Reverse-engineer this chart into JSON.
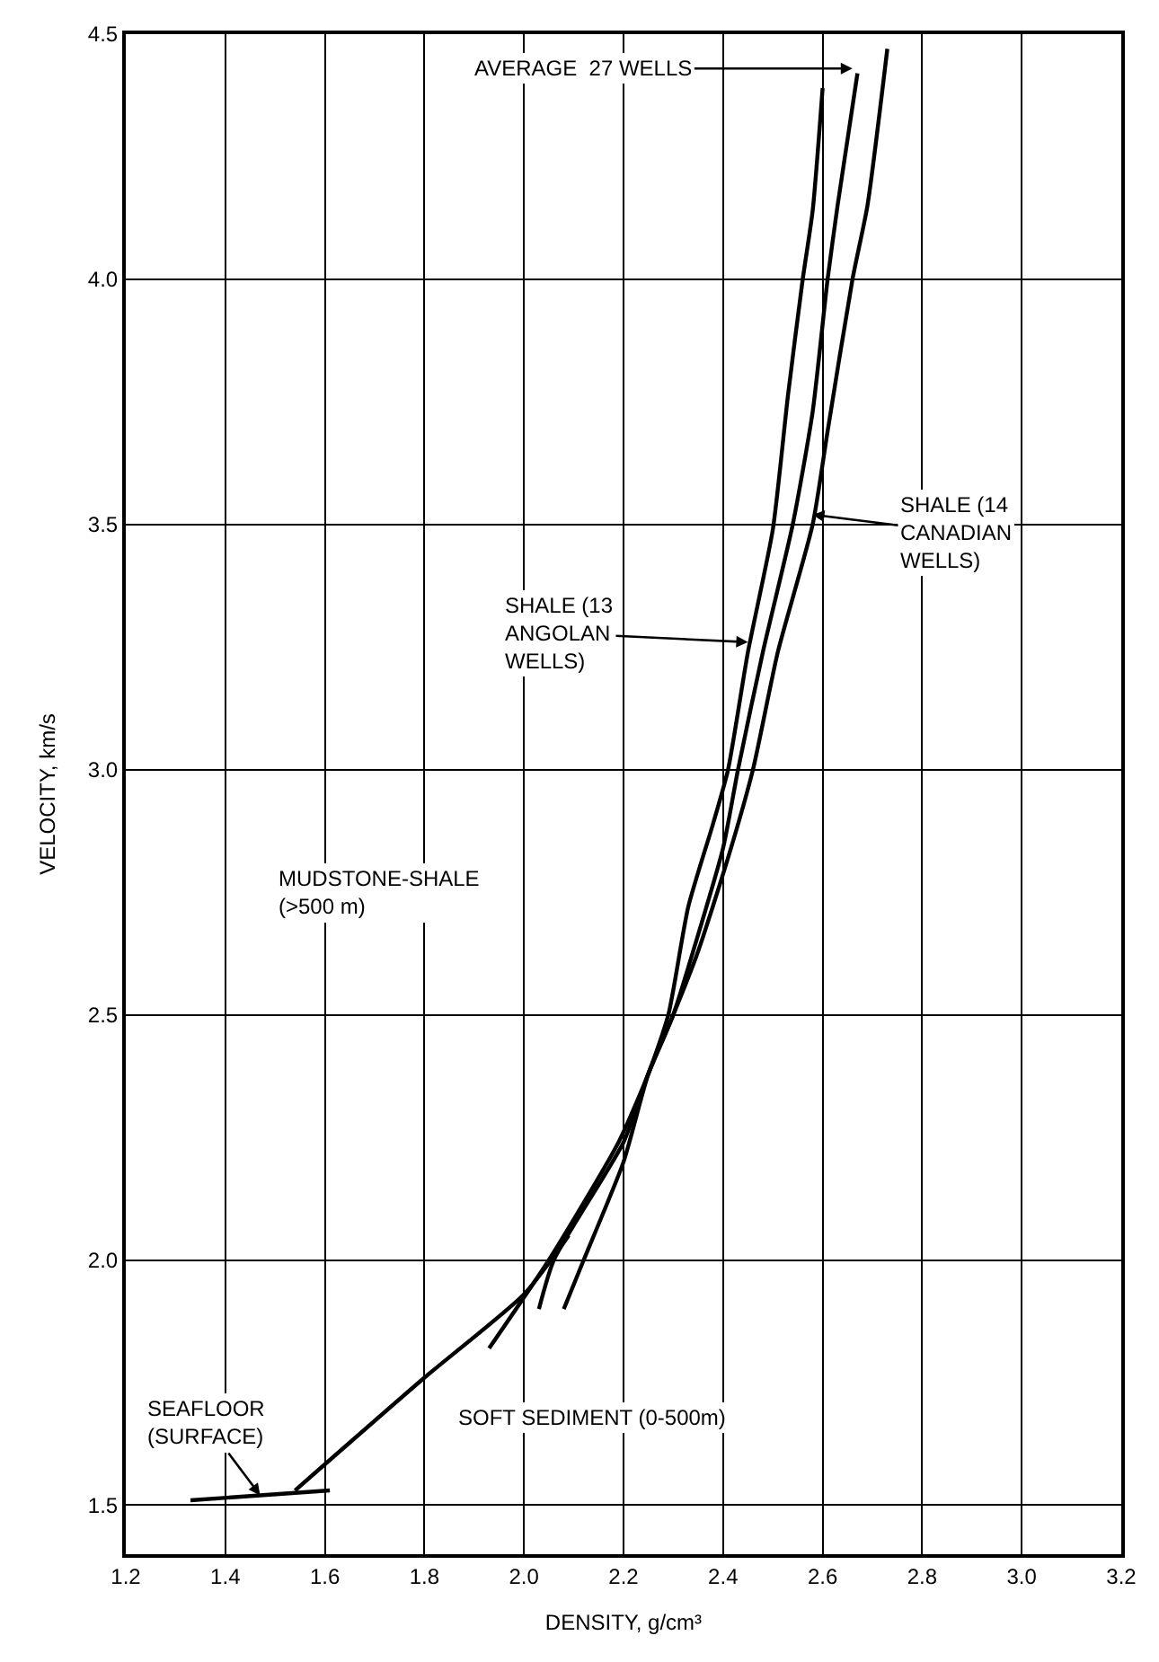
{
  "chart_data": {
    "type": "line",
    "xlabel": "DENSITY, g/cm³",
    "ylabel": "VELOCITY, km/s",
    "xlim": [
      1.2,
      3.2
    ],
    "xticks": [
      1.2,
      1.4,
      1.6,
      1.8,
      {
        "value": 2,
        "label": "2.0"
      },
      2.2,
      2.4,
      2.6,
      2.8,
      {
        "value": 3,
        "label": "3.0"
      },
      3.2
    ],
    "ylim": [
      1.4,
      4.5
    ],
    "yticks": [
      1.5,
      {
        "value": 2,
        "label": "2.0"
      },
      2.5,
      {
        "value": 3,
        "label": "3.0"
      },
      3.5,
      {
        "value": 4,
        "label": "4.0"
      },
      4.5
    ],
    "grid": true,
    "marker": "none",
    "line_style": "solid",
    "series": [
      {
        "color": "#000000",
        "x": [
          2.6,
          2.58,
          2.56,
          2.53,
          2.5,
          2.45,
          2.41,
          2.38,
          2.33,
          2.29,
          2.25,
          2.19,
          2.05,
          1.93
        ],
        "values": [
          4.39,
          4.14,
          4.0,
          3.76,
          3.49,
          3.24,
          3.0,
          2.89,
          2.72,
          2.5,
          2.38,
          2.24,
          2.0,
          1.82
        ]
      },
      {
        "color": "#000000",
        "x": [
          2.67,
          2.63,
          2.61,
          2.58,
          2.54,
          2.48,
          2.43,
          2.4,
          2.34,
          2.3,
          2.25,
          2.2,
          2.06,
          2.03
        ],
        "values": [
          4.42,
          4.15,
          4.0,
          3.73,
          3.5,
          3.24,
          3.0,
          2.84,
          2.63,
          2.5,
          2.38,
          2.24,
          2.0,
          1.9
        ]
      },
      {
        "color": "#000000",
        "x": [
          2.73,
          2.69,
          2.66,
          2.61,
          2.58,
          2.51,
          2.46,
          2.41,
          2.35,
          2.3,
          2.25,
          2.2,
          2.12,
          2.08
        ],
        "values": [
          4.47,
          4.15,
          4.0,
          3.69,
          3.5,
          3.24,
          3.0,
          2.82,
          2.63,
          2.5,
          2.38,
          2.2,
          2.0,
          1.9
        ]
      },
      {
        "color": "#000000",
        "x": [
          1.54,
          1.8,
          2.0,
          2.09
        ],
        "values": [
          1.53,
          1.76,
          1.93,
          2.05
        ]
      },
      {
        "color": "#000000",
        "x": [
          1.33,
          1.47,
          1.61
        ],
        "values": [
          1.51,
          1.52,
          1.53
        ]
      }
    ],
    "annotations": [
      {
        "text": "AVERAGE  27 WELLS",
        "x": 2.66,
        "y": 4.43
      },
      {
        "text": "SHALE (14\nCANADIAN\nWELLS)",
        "x": 2.58,
        "y": 3.52
      },
      {
        "text": "SHALE (13\nANGOLAN\nWELLS)",
        "x": 2.45,
        "y": 3.26
      },
      {
        "text": "SEAFLOOR\n(SURFACE)",
        "x": 1.47,
        "y": 1.52
      },
      "MUDSTONE-SHALE\n(>500 m)",
      "SOFT SEDIMENT (0-500m)"
    ]
  }
}
